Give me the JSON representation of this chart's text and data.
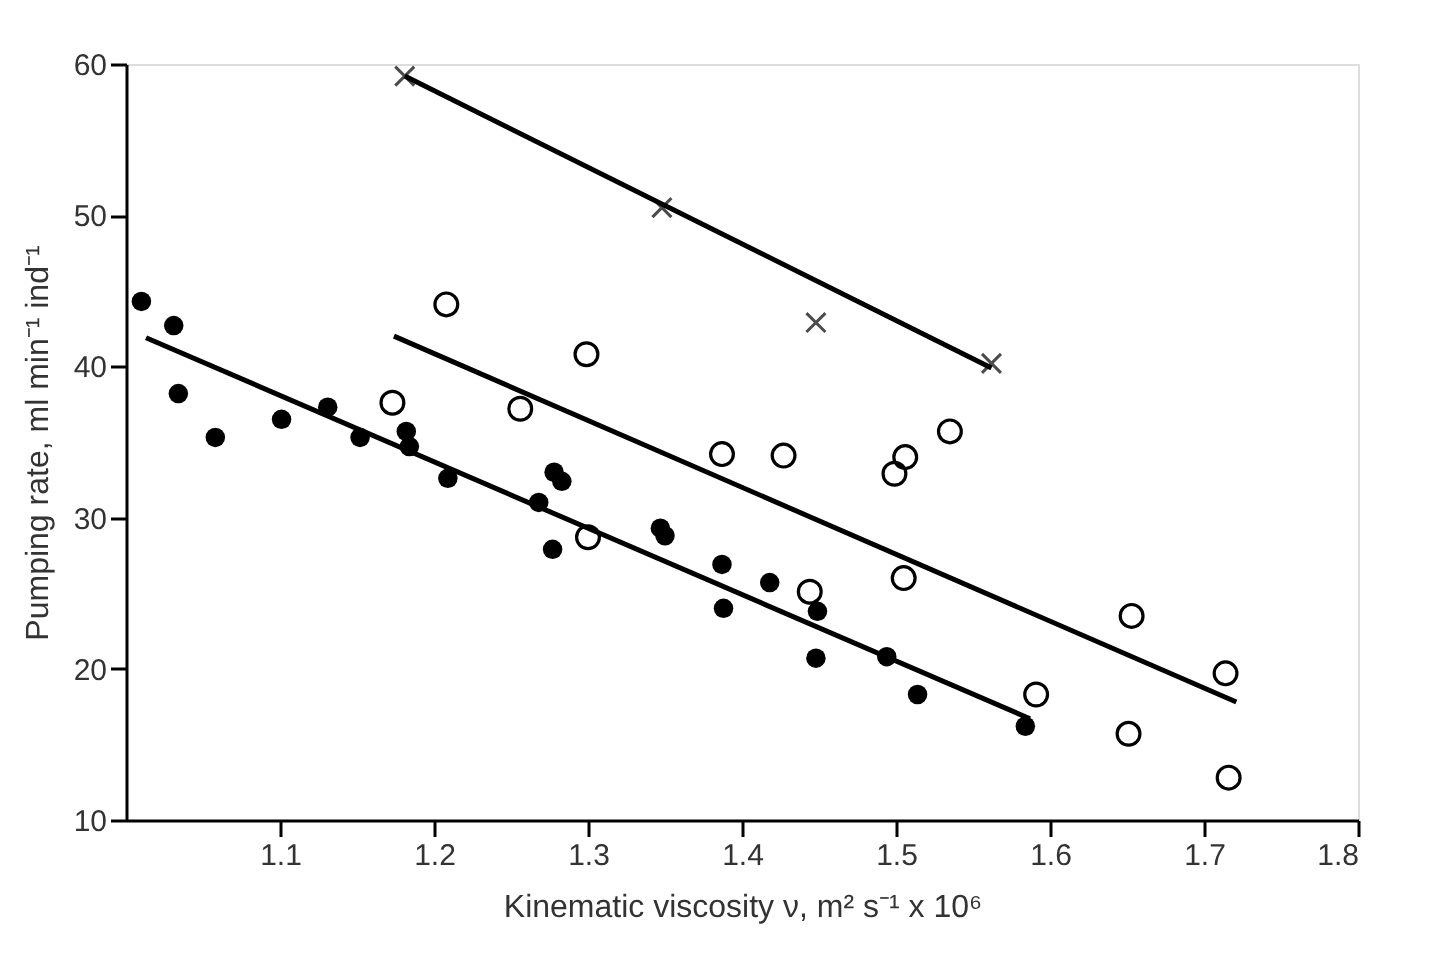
{
  "chart_data": {
    "type": "scatter",
    "xlabel": "Kinematic viscosity ν, m² s⁻¹ x 10⁶",
    "ylabel": "Pumping rate,  ml min⁻¹ ind⁻¹",
    "xlim": [
      1.0,
      1.8
    ],
    "xticks": [
      1.1,
      1.2,
      1.3,
      1.4,
      1.5,
      1.6,
      1.7,
      1.8
    ],
    "ylim": [
      10,
      60
    ],
    "yticks": [
      10,
      20,
      30,
      40,
      50,
      60
    ],
    "grid": false,
    "legend": false,
    "series": [
      {
        "marker": "circle",
        "color": "#000000",
        "x": [
          1.01,
          1.031,
          1.034,
          1.058,
          1.101,
          1.131,
          1.152,
          1.182,
          1.184,
          1.209,
          1.268,
          1.278,
          1.283,
          1.277,
          1.347,
          1.35,
          1.387,
          1.388,
          1.418,
          1.449,
          1.448,
          1.494,
          1.514,
          1.584
        ],
        "values": [
          44.3,
          42.7,
          38.2,
          35.3,
          36.5,
          37.3,
          35.3,
          35.7,
          34.7,
          32.6,
          31.0,
          33.0,
          32.4,
          27.9,
          29.3,
          28.8,
          26.9,
          24.0,
          25.7,
          23.8,
          20.7,
          20.8,
          18.3,
          16.2
        ]
      },
      {
        "marker": "circle",
        "color": "#000000",
        "x": [
          1.173,
          1.208,
          1.256,
          1.299,
          1.3,
          1.387,
          1.427,
          1.444,
          1.505,
          1.506,
          1.499,
          1.535,
          1.591,
          1.653,
          1.651,
          1.714,
          1.716
        ],
        "values": [
          37.6,
          44.1,
          37.2,
          40.8,
          28.7,
          34.2,
          34.1,
          25.1,
          26.0,
          34.0,
          32.9,
          35.7,
          18.3,
          23.5,
          15.7,
          19.7,
          12.8
        ]
      },
      {
        "marker": "cross",
        "color": "#000000",
        "x": [
          1.181,
          1.348,
          1.448,
          1.562
        ],
        "values": [
          59.2,
          50.5,
          42.9,
          40.2
        ]
      },
      {
        "type": "line",
        "marker": "none",
        "color": "#000000",
        "x": [
          1.013,
          1.587
        ],
        "values": [
          41.9,
          16.7
        ]
      },
      {
        "type": "line",
        "marker": "none",
        "color": "#000000",
        "x": [
          1.174,
          1.721
        ],
        "values": [
          42.0,
          17.8
        ]
      },
      {
        "type": "line",
        "marker": "none",
        "color": "#000000",
        "x": [
          1.181,
          1.562
        ],
        "values": [
          59.2,
          39.9
        ]
      }
    ]
  }
}
